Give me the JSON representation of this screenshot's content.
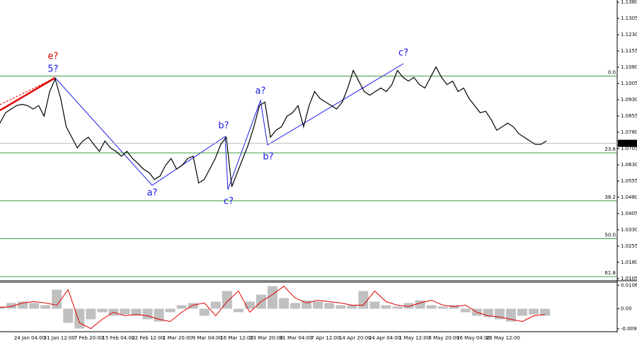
{
  "chart_data": [
    {
      "type": "line",
      "color": "#000000",
      "values": [
        1.0822,
        1.087,
        1.0887,
        1.0903,
        1.0909,
        1.0903,
        1.0887,
        1.0903,
        1.0854,
        1.0968,
        1.1026,
        1.0935,
        1.0805,
        1.0757,
        1.0708,
        1.074,
        1.0757,
        1.0724,
        1.0692,
        1.074,
        1.0708,
        1.0692,
        1.0669,
        1.0692,
        1.0659,
        1.0636,
        1.061,
        1.0594,
        1.0562,
        1.0578,
        1.0627,
        1.0659,
        1.061,
        1.0627,
        1.0659,
        1.0669,
        1.0546,
        1.0562,
        1.061,
        1.0659,
        1.0724,
        1.0757,
        1.0529,
        1.0594,
        1.0659,
        1.0724,
        1.0805,
        1.0903,
        1.0919,
        1.0757,
        1.0789,
        1.0805,
        1.0854,
        1.087,
        1.0903,
        1.0805,
        1.0903,
        1.0968,
        1.0935,
        1.0919,
        1.0903,
        1.0887,
        1.0919,
        1.0984,
        1.1065,
        1.1016,
        1.0968,
        1.0951,
        1.0968,
        1.0984,
        1.0968,
        1.1,
        1.1065,
        1.1033,
        1.1016,
        1.1033,
        1.1,
        1.0984,
        1.1033,
        1.1081,
        1.1033,
        1.1,
        1.1016,
        1.0968,
        1.0984,
        1.0935,
        1.0903,
        1.087,
        1.0877,
        1.0838,
        1.0789,
        1.0805,
        1.0822,
        1.0805,
        1.0773,
        1.0757,
        1.074,
        1.0724,
        1.0724,
        1.074
      ],
      "ylim": [
        1.0095,
        1.139
      ],
      "yticks": [
        {
          "value": 1.138,
          "label": "1.1380"
        },
        1.1305,
        {
          "value": 1.123,
          "label": "1.1230"
        },
        1.1155,
        {
          "value": 1.108,
          "label": "1.1080"
        },
        1.1005,
        {
          "value": 1.093,
          "label": "1.0930"
        },
        1.0855,
        {
          "value": 1.078,
          "label": "1.0780"
        },
        1.0705,
        {
          "value": 1.063,
          "label": "1.0630"
        },
        1.0555,
        {
          "value": 1.048,
          "label": "1.0480"
        },
        1.0405,
        {
          "value": 1.033,
          "label": "1.0330"
        },
        1.0255,
        {
          "value": 1.018,
          "label": "1.0180"
        },
        1.0105
      ],
      "last_price": 1.0729,
      "levels": [
        {
          "label": "0.0",
          "value": 1.1039
        },
        {
          "label": "23.6",
          "value": 1.0685
        },
        {
          "label": "38.2",
          "value": 1.0464
        },
        {
          "label": "50.0",
          "value": 1.0289
        },
        {
          "label": "61.8",
          "value": 1.0114
        }
      ],
      "annotations": [
        {
          "text": "e?",
          "color": "#e00000"
        },
        {
          "text": "5?",
          "color": "#1a1ae6"
        },
        {
          "text": "a?",
          "color": "#1a1ae6"
        },
        {
          "text": "b?",
          "color": "#1a1ae6"
        },
        {
          "text": "c?",
          "color": "#1a1ae6"
        },
        {
          "text": "a?",
          "color": "#1a1ae6"
        },
        {
          "text": "b?",
          "color": "#1a1ae6"
        },
        {
          "text": "c?",
          "color": "#1a1ae6"
        }
      ],
      "x_labels": [
        "24 Jan 04:00",
        "31 Jan 12:00",
        "7 Feb 20:00",
        "15 Feb 04:00",
        "22 Feb 12:00",
        "1 Mar 20:00",
        "9 Mar 04:00",
        "16 Mar 12:00",
        "23 Mar 20:00",
        "31 Mar 04:00",
        "7 Apr 12:00",
        "14 Apr 20:00",
        "24 Apr 04:00",
        "1 May 12:00",
        "8 May 20:00",
        "16 May 04:00",
        "23 May 12:00"
      ]
    },
    {
      "type": "bar",
      "series": [
        {
          "color": "#c0c0c0",
          "values": [
            0.001,
            0.0026,
            0.0032,
            0.0026,
            0.0016,
            0.0086,
            -0.0064,
            -0.009,
            -0.0048,
            -0.0016,
            -0.0032,
            -0.0026,
            -0.0032,
            -0.0048,
            -0.0058,
            -0.0016,
            0.0016,
            0.0026,
            -0.0032,
            0.0032,
            0.008,
            -0.0016,
            0.0032,
            0.0064,
            0.0102,
            0.0048,
            0.0026,
            0.0038,
            0.0032,
            0.0026,
            0.0016,
            0.0016,
            0.008,
            0.0032,
            0.0016,
            0.001,
            0.0026,
            0.0038,
            0.0016,
            0.001,
            0.0016,
            -0.0016,
            -0.0032,
            -0.0038,
            -0.0048,
            -0.0058,
            -0.0032,
            -0.0026,
            -0.0032
          ]
        },
        {
          "color": "#e00000",
          "values": [
            0.0005,
            0.001,
            0.0026,
            0.0032,
            0.0026,
            0.0016,
            0.0086,
            -0.0064,
            -0.009,
            -0.0048,
            -0.0016,
            -0.0032,
            -0.0026,
            -0.0032,
            -0.0048,
            -0.0058,
            -0.0016,
            0.0016,
            0.0026,
            -0.0032,
            0.0032,
            0.008,
            -0.0016,
            0.0032,
            0.0064,
            0.0102,
            0.0048,
            0.0026,
            0.0038,
            0.0032,
            0.0026,
            0.0016,
            0.0016,
            0.008,
            0.0032,
            0.0016,
            0.001,
            0.0026,
            0.0038,
            0.0016,
            0.001,
            0.0016,
            -0.0016,
            -0.0032,
            -0.0038,
            -0.0048,
            -0.0058,
            -0.0032,
            -0.0026
          ]
        }
      ],
      "ylim": [
        -0.0101,
        0.0117
      ],
      "yticks": [
        0.01065,
        {
          "value": 0,
          "label": "0.00"
        },
        -0.00913
      ]
    }
  ]
}
